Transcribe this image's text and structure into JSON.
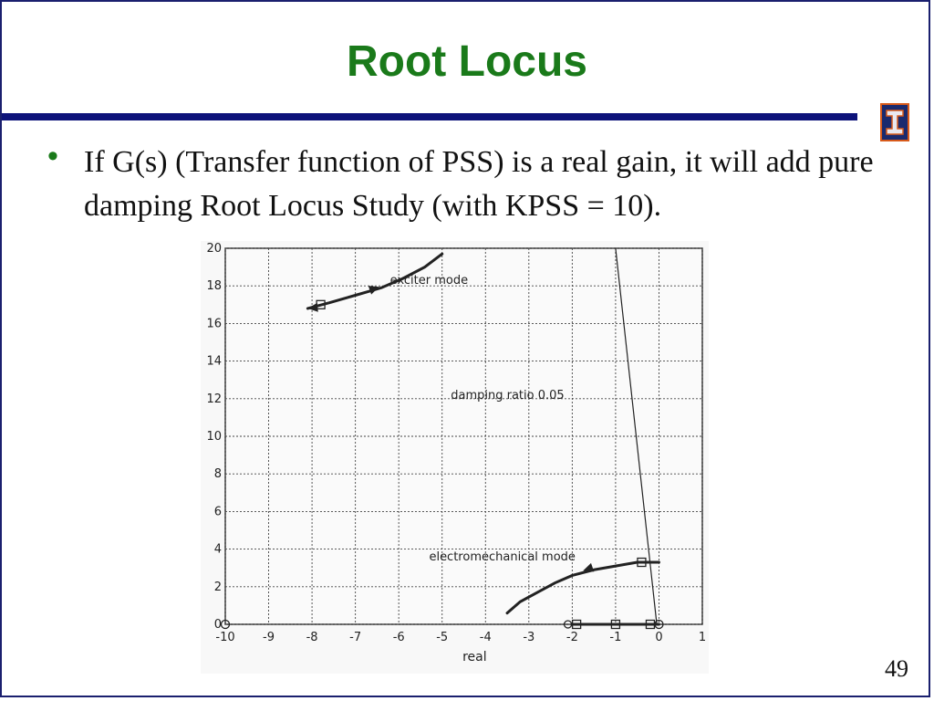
{
  "slide": {
    "title": "Root Locus",
    "bullet": "If G(s)  (Transfer function of PSS) is a real gain, it will add pure damping Root Locus Study (with KPSS = 10).",
    "page_number": "49"
  },
  "logo": {
    "icon": "block-i-logo",
    "color_bg": "#1a2a6e",
    "color_accent": "#d85a1a"
  },
  "colors": {
    "title": "#1a7a1a",
    "rule": "#0d137a"
  },
  "chart_data": {
    "type": "line",
    "xlabel": "real",
    "ylabel": "",
    "xlim": [
      -10,
      1
    ],
    "ylim": [
      0,
      20
    ],
    "x_ticks": [
      "-10",
      "-9",
      "-8",
      "-7",
      "-6",
      "-5",
      "-4",
      "-3",
      "-2",
      "-1",
      "0",
      "1"
    ],
    "y_ticks": [
      "0",
      "2",
      "4",
      "6",
      "8",
      "10",
      "12",
      "14",
      "16",
      "18",
      "20"
    ],
    "grid": true,
    "annotations": [
      {
        "text": "exciter mode",
        "x": -6.2,
        "y": 18.1
      },
      {
        "text": "damping ratio 0.05",
        "x": -4.8,
        "y": 12.0
      },
      {
        "text": "electromechanical mode",
        "x": -5.3,
        "y": 3.4
      }
    ],
    "series": [
      {
        "name": "exciter mode",
        "x": [
          -8.1,
          -7.6,
          -7.0,
          -6.4,
          -5.9,
          -5.4,
          -5.0
        ],
        "y": [
          16.8,
          17.1,
          17.5,
          17.9,
          18.4,
          19.0,
          19.7
        ],
        "markers": [
          {
            "x": -7.8,
            "y": 17.0
          }
        ]
      },
      {
        "name": "damping ratio 0.05",
        "x": [
          -1.0,
          -0.05
        ],
        "y": [
          20.0,
          0.0
        ]
      },
      {
        "name": "electromechanical mode",
        "x": [
          -3.5,
          -3.2,
          -2.8,
          -2.4,
          -2.0,
          -1.5,
          -1.0,
          -0.5,
          0.0
        ],
        "y": [
          0.6,
          1.2,
          1.7,
          2.2,
          2.6,
          2.9,
          3.1,
          3.3,
          3.3
        ],
        "markers": [
          {
            "x": -0.4,
            "y": 3.3
          }
        ]
      },
      {
        "name": "",
        "x": [
          -2.0,
          -0.9,
          -0.3,
          0.0
        ],
        "y": [
          0.0,
          0.0,
          0.0,
          0.0
        ],
        "markers": [
          {
            "x": -1.9,
            "y": 0.0
          },
          {
            "x": -1.0,
            "y": 0.0
          },
          {
            "x": -0.2,
            "y": 0.0
          }
        ]
      }
    ]
  }
}
